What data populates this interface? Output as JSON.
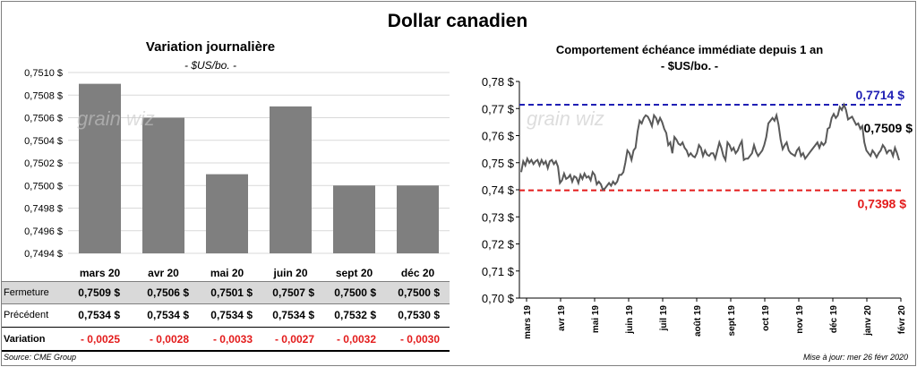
{
  "title": "Dollar canadien",
  "daily": {
    "title": "Variation  journalière",
    "subtitle": "- $US/bo. -",
    "row_labels": {
      "close": "Fermeture",
      "prev": "Précédent",
      "var": "Variation"
    },
    "close_labels": [
      "0,7509  $",
      "0,7506  $",
      "0,7501  $",
      "0,7507  $",
      "0,7500  $",
      "0,7500  $"
    ],
    "prev_labels": [
      "0,7534  $",
      "0,7534  $",
      "0,7534  $",
      "0,7534  $",
      "0,7532  $",
      "0,7530  $"
    ],
    "var_labels": [
      "- 0,0025",
      "- 0,0028",
      "- 0,0033",
      "- 0,0027",
      "- 0,0032",
      "- 0,0030"
    ]
  },
  "history": {
    "title": "Comportement échéance immédiate depuis 1 an",
    "subtitle": "- $US/bo. -",
    "high_label": "0,7714  $",
    "low_label": "0,7398  $",
    "last_label": "0,7509 $"
  },
  "watermark": "grain wiz",
  "source": "Source: CME Group",
  "update": "Mise à jour: mer 26 févr 2020",
  "colors": {
    "bar": "#7f7f7f",
    "line": "#595959",
    "high": "#1f1fb4",
    "low": "#e31b1b",
    "grid": "#d9d9d9"
  },
  "chart_data": [
    {
      "type": "bar",
      "categories": [
        "mars 20",
        "avr 20",
        "mai 20",
        "juin 20",
        "sept 20",
        "déc 20"
      ],
      "values": [
        0.7509,
        0.7506,
        0.7501,
        0.7507,
        0.75,
        0.75
      ],
      "ylim": [
        0.7494,
        0.751
      ],
      "yticks": [
        "0,7494 $",
        "0,7496 $",
        "0,7498 $",
        "0,7500 $",
        "0,7502 $",
        "0,7504 $",
        "0,7506 $",
        "0,7508 $",
        "0,7510 $"
      ],
      "grid": true
    },
    {
      "type": "line",
      "ylim": [
        0.7,
        0.78
      ],
      "yticks": [
        "0,70 $",
        "0,71 $",
        "0,72 $",
        "0,73 $",
        "0,74 $",
        "0,75 $",
        "0,76 $",
        "0,77 $",
        "0,78 $"
      ],
      "xticks": [
        "mars 19",
        "avr 19",
        "mai 19",
        "juin 19",
        "juil 19",
        "août 19",
        "sept 19",
        "oct 19",
        "nov 19",
        "déc 19",
        "janv 20",
        "févr 20"
      ],
      "hlines": [
        {
          "value": 0.7714
        },
        {
          "value": 0.7398
        }
      ],
      "series": [
        {
          "values": [
            0.7465,
            0.7505,
            0.749,
            0.7515,
            0.75,
            0.751,
            0.7495,
            0.7505,
            0.751,
            0.749,
            0.751,
            0.7495,
            0.7505,
            0.748,
            0.7505,
            0.751,
            0.7495,
            0.7505,
            0.7485,
            0.7425,
            0.7435,
            0.746,
            0.744,
            0.7445,
            0.7455,
            0.743,
            0.745,
            0.7445,
            0.7425,
            0.7455,
            0.744,
            0.746,
            0.7445,
            0.745,
            0.7435,
            0.7465,
            0.7455,
            0.742,
            0.743,
            0.742,
            0.74,
            0.7405,
            0.7415,
            0.7425,
            0.7415,
            0.743,
            0.742,
            0.743,
            0.7455,
            0.7455,
            0.7465,
            0.75,
            0.7545,
            0.7535,
            0.751,
            0.7545,
            0.7555,
            0.7615,
            0.7655,
            0.7645,
            0.7665,
            0.7675,
            0.767,
            0.7655,
            0.7635,
            0.7675,
            0.7665,
            0.7645,
            0.7665,
            0.765,
            0.7625,
            0.761,
            0.7565,
            0.7575,
            0.7535,
            0.7595,
            0.7585,
            0.757,
            0.7565,
            0.7575,
            0.7555,
            0.7545,
            0.7525,
            0.7535,
            0.7525,
            0.752,
            0.7535,
            0.7565,
            0.7555,
            0.7525,
            0.7545,
            0.753,
            0.7525,
            0.7535,
            0.7535,
            0.7515,
            0.7545,
            0.7575,
            0.7555,
            0.7525,
            0.751,
            0.7575,
            0.7565,
            0.7545,
            0.7555,
            0.7535,
            0.7545,
            0.7565,
            0.758,
            0.751,
            0.7515,
            0.7515,
            0.7525,
            0.7535,
            0.7565,
            0.754,
            0.7525,
            0.7535,
            0.7545,
            0.7565,
            0.7595,
            0.7645,
            0.7655,
            0.7665,
            0.7655,
            0.7675,
            0.764,
            0.7585,
            0.755,
            0.7565,
            0.7575,
            0.7545,
            0.7535,
            0.753,
            0.7525,
            0.7545,
            0.7555,
            0.7525,
            0.7535,
            0.7515,
            0.7525,
            0.7535,
            0.7545,
            0.7555,
            0.7565,
            0.7575,
            0.7555,
            0.7575,
            0.7565,
            0.7575,
            0.7625,
            0.763,
            0.7665,
            0.768,
            0.7665,
            0.7675,
            0.7705,
            0.7695,
            0.7714,
            0.7695,
            0.766,
            0.7665,
            0.767,
            0.7655,
            0.764,
            0.7645,
            0.7625,
            0.7635,
            0.7575,
            0.7545,
            0.7535,
            0.7525,
            0.7545,
            0.7535,
            0.752,
            0.7535,
            0.7545,
            0.7565,
            0.7555,
            0.7535,
            0.7545,
            0.7545,
            0.7525,
            0.7555,
            0.7535,
            0.7509
          ]
        }
      ]
    }
  ]
}
